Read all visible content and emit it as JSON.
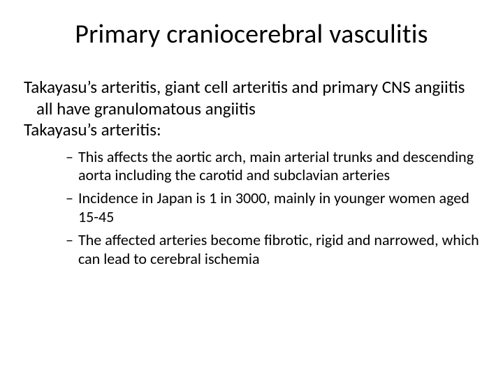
{
  "slide": {
    "title": "Primary craniocerebral vasculitis",
    "paragraphs": [
      "Takayasu’s arteritis, giant cell arteritis and primary CNS angiitis all have granulomatous angiitis",
      "Takayasu’s arteritis:"
    ],
    "bullets": [
      "This affects the aortic arch, main arterial trunks and descending aorta including the carotid and subclavian arteries",
      "Incidence in Japan is 1 in 3000, mainly in younger women aged 15-45",
      "The affected arteries become fibrotic, rigid and narrowed, which can lead to cerebral ischemia"
    ],
    "bullet_marker": "–"
  },
  "style": {
    "background_color": "#ffffff",
    "text_color": "#000000",
    "title_fontsize": 38,
    "body_fontsize": 25,
    "bullet_fontsize": 22,
    "font_family": "Calibri"
  }
}
